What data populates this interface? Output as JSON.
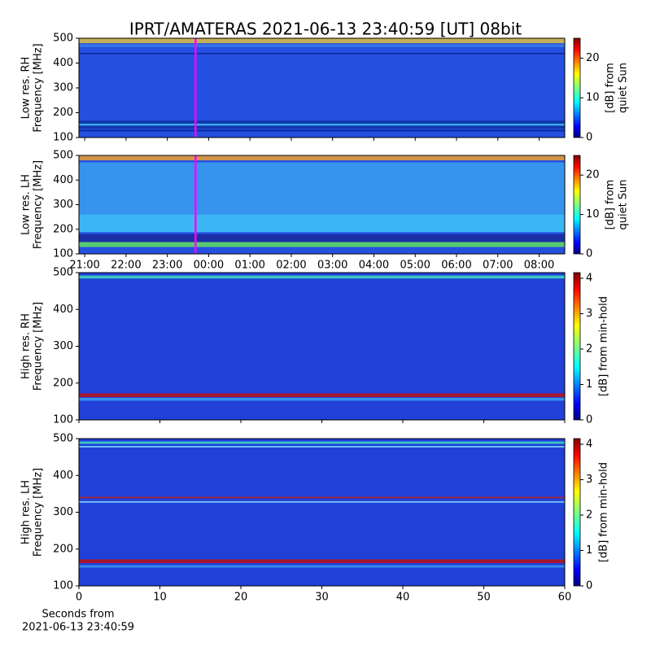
{
  "title": "IPRT/AMATERAS 2021-06-13 23:40:59 [UT]   08bit",
  "chart_data": [
    {
      "type": "heatmap",
      "ylabel": [
        "Low res. RH",
        "Frequency [MHz]"
      ],
      "ylim": [
        100,
        500
      ],
      "yticks": [
        100,
        200,
        300,
        400,
        500
      ],
      "xlim": [
        20.86,
        32.62
      ],
      "marker_x": 23.683,
      "marker_color": "#ff00ff",
      "colorbar_label": [
        "[dB] from",
        "quiet Sun"
      ],
      "colorbar_lim": [
        0,
        25
      ],
      "colorbar_ticks": [
        0,
        10,
        20
      ]
    },
    {
      "type": "heatmap",
      "ylabel": [
        "Low res. LH",
        "Frequency [MHz]"
      ],
      "ylim": [
        100,
        500
      ],
      "yticks": [
        100,
        200,
        300,
        400,
        500
      ],
      "xlim": [
        20.86,
        32.62
      ],
      "marker_x": 23.683,
      "marker_color": "#ff00ff",
      "xticks": [
        {
          "value": 21,
          "label": "21:00"
        },
        {
          "value": 22,
          "label": "22:00"
        },
        {
          "value": 23,
          "label": "23:00"
        },
        {
          "value": 24,
          "label": "00:00"
        },
        {
          "value": 25,
          "label": "01:00"
        },
        {
          "value": 26,
          "label": "02:00"
        },
        {
          "value": 27,
          "label": "03:00"
        },
        {
          "value": 28,
          "label": "04:00"
        },
        {
          "value": 29,
          "label": "05:00"
        },
        {
          "value": 30,
          "label": "06:00"
        },
        {
          "value": 31,
          "label": "07:00"
        },
        {
          "value": 32,
          "label": "08:00"
        }
      ],
      "colorbar_label": [
        "[dB] from",
        "quiet Sun"
      ],
      "colorbar_lim": [
        0,
        25
      ],
      "colorbar_ticks": [
        0,
        10,
        20
      ]
    },
    {
      "type": "heatmap",
      "ylabel": [
        "High res. RH",
        "Frequency [MHz]"
      ],
      "ylim": [
        100,
        500
      ],
      "yticks": [
        100,
        200,
        300,
        400,
        500
      ],
      "xlim": [
        0,
        60
      ],
      "colorbar_label": [
        "[dB] from min-hold"
      ],
      "colorbar_lim": [
        0,
        4.16
      ],
      "colorbar_ticks": [
        0,
        1,
        2,
        3,
        4
      ]
    },
    {
      "type": "heatmap",
      "ylabel": [
        "High res. LH",
        "Frequency [MHz]"
      ],
      "ylim": [
        100,
        500
      ],
      "yticks": [
        100,
        200,
        300,
        400,
        500
      ],
      "xlim": [
        0,
        60
      ],
      "xticks": [
        0,
        10,
        20,
        30,
        40,
        50,
        60
      ],
      "xlabel": [
        "Seconds from",
        "2021-06-13 23:40:59"
      ],
      "colorbar_label": [
        "[dB] from min-hold"
      ],
      "colorbar_lim": [
        0,
        4.16
      ],
      "colorbar_ticks": [
        0,
        1,
        2,
        3,
        4
      ]
    }
  ]
}
